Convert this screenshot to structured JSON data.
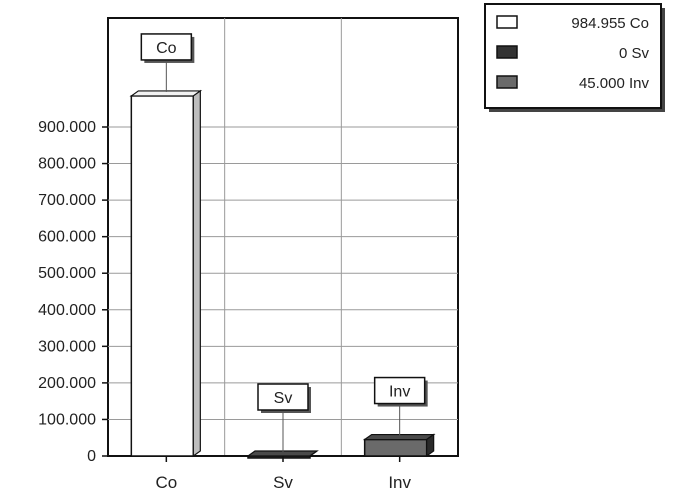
{
  "chart_data": {
    "type": "bar",
    "categories": [
      "Co",
      "Sv",
      "Inv"
    ],
    "values": [
      984.955,
      0,
      45.0
    ],
    "data_labels": [
      "Co",
      "Sv",
      "Inv"
    ],
    "ylim": [
      0,
      1000
    ],
    "yticks": [
      0,
      100,
      200,
      300,
      400,
      500,
      600,
      700,
      800,
      900
    ],
    "ytick_labels": [
      "0",
      "100.000",
      "200.000",
      "300.000",
      "400.000",
      "500.000",
      "600.000",
      "700.000",
      "800.000",
      "900.000"
    ],
    "grid": true,
    "bar_style": "3d",
    "legend_position": "top-right",
    "legend": [
      {
        "label": "984.955 Co",
        "color": "#ffffff"
      },
      {
        "label": "0 Sv",
        "color": "#333333"
      },
      {
        "label": "45.000 Inv",
        "color": "#6a6a6a"
      }
    ],
    "colors": [
      "#ffffff",
      "#333333",
      "#6a6a6a"
    ]
  }
}
